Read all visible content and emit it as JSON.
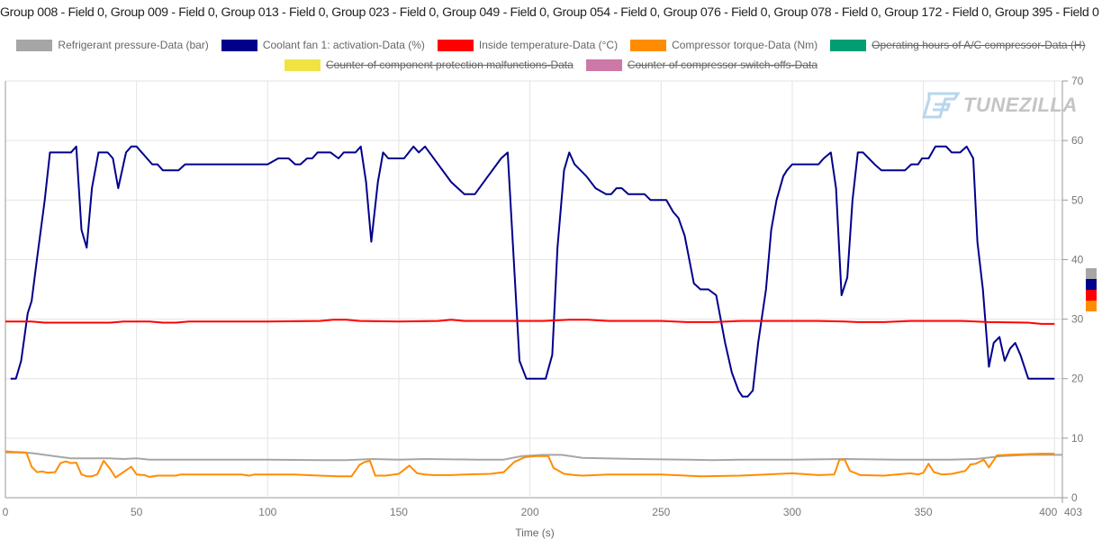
{
  "title": "Group 008 - Field 0, Group 009 - Field 0, Group 013 - Field 0, Group 023 - Field 0, Group 049 - Field 0, Group 054 - Field 0, Group 076 - Field 0, Group 078 - Field 0, Group 172 - Field 0, Group 395 - Field 0",
  "watermark": "TUNEZILLA",
  "chart_data": {
    "type": "line",
    "title": "Group 008 - Field 0, Group 009 - Field 0, Group 013 - Field 0, Group 023 - Field 0, Group 049 - Field 0, Group 054 - Field 0, Group 076 - Field 0, Group 078 - Field 0, Group 172 - Field 0, Group 395 - Field 0",
    "xlabel": "Time (s)",
    "ylabel": "",
    "xlim": [
      0,
      403
    ],
    "ylim": [
      0,
      70
    ],
    "x_ticks": [
      "0",
      "50",
      "100",
      "150",
      "200",
      "250",
      "300",
      "350",
      "400",
      "403"
    ],
    "y_ticks": [
      "0",
      "10",
      "20",
      "30",
      "40",
      "50",
      "60",
      "70"
    ],
    "grid": true,
    "legend_position": "top",
    "series": [
      {
        "name": "Refrigerant pressure-Data (bar)",
        "color": "#a6a6a6",
        "visible": true,
        "points": [
          [
            0,
            7.6
          ],
          [
            5,
            7.6
          ],
          [
            10,
            7.5
          ],
          [
            15,
            7.2
          ],
          [
            20,
            6.9
          ],
          [
            25,
            6.6
          ],
          [
            40,
            6.6
          ],
          [
            45,
            6.5
          ],
          [
            50,
            6.6
          ],
          [
            55,
            6.4
          ],
          [
            100,
            6.4
          ],
          [
            120,
            6.3
          ],
          [
            130,
            6.3
          ],
          [
            140,
            6.5
          ],
          [
            150,
            6.4
          ],
          [
            160,
            6.5
          ],
          [
            180,
            6.4
          ],
          [
            190,
            6.4
          ],
          [
            197,
            7.0
          ],
          [
            205,
            7.2
          ],
          [
            212,
            7.2
          ],
          [
            220,
            6.7
          ],
          [
            240,
            6.5
          ],
          [
            260,
            6.4
          ],
          [
            270,
            6.3
          ],
          [
            280,
            6.4
          ],
          [
            300,
            6.4
          ],
          [
            320,
            6.5
          ],
          [
            340,
            6.4
          ],
          [
            360,
            6.4
          ],
          [
            370,
            6.5
          ],
          [
            380,
            7.0
          ],
          [
            390,
            7.2
          ],
          [
            403,
            7.2
          ]
        ]
      },
      {
        "name": "Coolant fan 1: activation-Data (%)",
        "color": "#00008b",
        "visible": true,
        "points": [
          [
            2,
            20
          ],
          [
            4,
            20
          ],
          [
            6,
            23
          ],
          [
            8.5,
            31
          ],
          [
            10,
            33
          ],
          [
            12,
            40
          ],
          [
            15,
            50
          ],
          [
            17,
            58
          ],
          [
            25,
            58
          ],
          [
            27,
            59
          ],
          [
            29,
            45
          ],
          [
            31,
            42
          ],
          [
            33,
            52
          ],
          [
            35.5,
            58
          ],
          [
            39,
            58
          ],
          [
            41,
            57
          ],
          [
            43,
            52
          ],
          [
            46,
            58
          ],
          [
            48,
            59
          ],
          [
            50,
            59
          ],
          [
            56,
            56
          ],
          [
            58,
            56
          ],
          [
            60,
            55
          ],
          [
            66,
            55
          ],
          [
            68.5,
            56
          ],
          [
            100,
            56
          ],
          [
            104,
            57
          ],
          [
            108,
            57
          ],
          [
            110.5,
            56
          ],
          [
            112.5,
            56
          ],
          [
            115,
            57
          ],
          [
            117,
            57
          ],
          [
            119,
            58
          ],
          [
            124,
            58
          ],
          [
            127,
            57
          ],
          [
            129,
            58
          ],
          [
            133.5,
            58
          ],
          [
            135.5,
            59
          ],
          [
            137.5,
            53
          ],
          [
            139.5,
            43
          ],
          [
            142,
            53
          ],
          [
            144,
            58
          ],
          [
            146,
            57
          ],
          [
            152,
            57
          ],
          [
            155.6,
            59
          ],
          [
            157.6,
            58
          ],
          [
            160,
            59
          ],
          [
            170,
            53
          ],
          [
            175,
            51
          ],
          [
            179,
            51
          ],
          [
            184,
            54
          ],
          [
            189,
            57
          ],
          [
            191.5,
            58
          ],
          [
            196,
            23
          ],
          [
            198.6,
            20
          ],
          [
            206,
            20
          ],
          [
            208.5,
            24
          ],
          [
            210.5,
            42
          ],
          [
            213,
            55
          ],
          [
            215,
            58
          ],
          [
            217,
            56
          ],
          [
            221.5,
            54
          ],
          [
            225,
            52
          ],
          [
            229,
            51
          ],
          [
            231,
            51
          ],
          [
            233,
            52
          ],
          [
            235,
            52
          ],
          [
            237.5,
            51
          ],
          [
            243.7,
            51
          ],
          [
            246,
            50
          ],
          [
            252,
            50
          ],
          [
            254.6,
            48
          ],
          [
            256.6,
            47
          ],
          [
            259,
            44
          ],
          [
            262.5,
            36
          ],
          [
            265,
            35
          ],
          [
            268,
            35
          ],
          [
            271,
            34
          ],
          [
            274.4,
            26
          ],
          [
            277,
            21
          ],
          [
            279.5,
            18
          ],
          [
            281,
            17
          ],
          [
            283,
            17
          ],
          [
            285,
            18
          ],
          [
            287,
            26
          ],
          [
            290,
            35
          ],
          [
            292,
            45
          ],
          [
            294,
            50
          ],
          [
            296.6,
            54
          ],
          [
            298,
            55
          ],
          [
            300,
            56
          ],
          [
            310,
            56
          ],
          [
            312,
            57
          ],
          [
            314.7,
            58
          ],
          [
            316.7,
            52
          ],
          [
            318.8,
            34
          ],
          [
            321,
            37
          ],
          [
            323,
            50
          ],
          [
            325,
            58
          ],
          [
            327,
            58
          ],
          [
            331.4,
            56
          ],
          [
            334,
            55
          ],
          [
            343,
            55
          ],
          [
            345.4,
            56
          ],
          [
            348,
            56
          ],
          [
            349.5,
            57
          ],
          [
            352,
            57
          ],
          [
            354.6,
            59
          ],
          [
            358.7,
            59
          ],
          [
            360.8,
            58
          ],
          [
            364,
            58
          ],
          [
            366.5,
            59
          ],
          [
            369,
            57
          ],
          [
            370.6,
            43
          ],
          [
            372.7,
            35
          ],
          [
            375,
            22
          ],
          [
            376.8,
            26
          ],
          [
            379,
            27
          ],
          [
            381,
            23
          ],
          [
            383,
            25
          ],
          [
            385,
            26
          ],
          [
            387,
            24
          ],
          [
            390,
            20
          ],
          [
            400,
            20
          ]
        ]
      },
      {
        "name": "Inside temperature-Data (°C)",
        "color": "#ff0000",
        "visible": true,
        "points": [
          [
            0,
            29.6
          ],
          [
            10,
            29.6
          ],
          [
            15,
            29.4
          ],
          [
            40,
            29.4
          ],
          [
            45,
            29.6
          ],
          [
            55,
            29.6
          ],
          [
            60,
            29.4
          ],
          [
            65,
            29.4
          ],
          [
            70,
            29.6
          ],
          [
            100,
            29.6
          ],
          [
            120,
            29.7
          ],
          [
            125,
            29.9
          ],
          [
            130,
            29.9
          ],
          [
            135,
            29.7
          ],
          [
            150,
            29.6
          ],
          [
            165,
            29.7
          ],
          [
            170,
            29.9
          ],
          [
            175,
            29.7
          ],
          [
            205,
            29.7
          ],
          [
            215,
            29.9
          ],
          [
            222,
            29.9
          ],
          [
            230,
            29.7
          ],
          [
            250,
            29.7
          ],
          [
            260,
            29.5
          ],
          [
            270,
            29.5
          ],
          [
            280,
            29.7
          ],
          [
            310,
            29.7
          ],
          [
            320,
            29.6
          ],
          [
            325,
            29.5
          ],
          [
            335,
            29.5
          ],
          [
            345,
            29.7
          ],
          [
            365,
            29.7
          ],
          [
            375,
            29.5
          ],
          [
            390,
            29.4
          ],
          [
            395,
            29.2
          ],
          [
            400,
            29.2
          ]
        ]
      },
      {
        "name": "Compressor torque-Data (Nm)",
        "color": "#ff8c00",
        "visible": true,
        "points": [
          [
            0,
            7.8
          ],
          [
            3,
            7.7
          ],
          [
            8,
            7.6
          ],
          [
            10,
            5.2
          ],
          [
            12,
            4.3
          ],
          [
            14,
            4.4
          ],
          [
            16,
            4.2
          ],
          [
            19,
            4.3
          ],
          [
            21,
            5.8
          ],
          [
            23,
            6.1
          ],
          [
            25,
            5.8
          ],
          [
            27,
            5.9
          ],
          [
            29,
            3.9
          ],
          [
            31,
            3.6
          ],
          [
            33,
            3.6
          ],
          [
            35,
            3.9
          ],
          [
            37.5,
            6.2
          ],
          [
            40,
            4.8
          ],
          [
            42,
            3.4
          ],
          [
            46,
            4.6
          ],
          [
            48,
            5.2
          ],
          [
            50,
            3.9
          ],
          [
            53,
            3.8
          ],
          [
            55,
            3.5
          ],
          [
            58,
            3.7
          ],
          [
            65,
            3.7
          ],
          [
            67,
            3.9
          ],
          [
            90,
            3.9
          ],
          [
            93,
            3.7
          ],
          [
            95,
            3.9
          ],
          [
            110,
            3.9
          ],
          [
            120,
            3.7
          ],
          [
            127,
            3.6
          ],
          [
            132,
            3.6
          ],
          [
            135,
            5.5
          ],
          [
            137,
            6.0
          ],
          [
            139,
            6.2
          ],
          [
            141,
            3.7
          ],
          [
            145,
            3.7
          ],
          [
            150,
            4.0
          ],
          [
            154,
            5.4
          ],
          [
            157,
            4.1
          ],
          [
            160,
            3.9
          ],
          [
            163,
            3.8
          ],
          [
            170,
            3.8
          ],
          [
            175,
            3.9
          ],
          [
            185,
            4.0
          ],
          [
            190,
            4.3
          ],
          [
            194,
            6.0
          ],
          [
            198,
            6.8
          ],
          [
            202,
            7.0
          ],
          [
            207,
            7.0
          ],
          [
            209,
            5.0
          ],
          [
            213,
            4.0
          ],
          [
            217,
            3.8
          ],
          [
            220,
            3.7
          ],
          [
            230,
            3.9
          ],
          [
            250,
            3.9
          ],
          [
            265,
            3.6
          ],
          [
            280,
            3.7
          ],
          [
            290,
            3.9
          ],
          [
            300,
            4.1
          ],
          [
            310,
            3.8
          ],
          [
            316,
            3.9
          ],
          [
            318,
            6.4
          ],
          [
            320,
            6.4
          ],
          [
            322,
            4.5
          ],
          [
            326,
            3.8
          ],
          [
            335,
            3.7
          ],
          [
            345,
            4.1
          ],
          [
            348,
            3.9
          ],
          [
            350,
            4.2
          ],
          [
            352,
            5.7
          ],
          [
            354,
            4.3
          ],
          [
            357,
            3.9
          ],
          [
            361,
            4.0
          ],
          [
            366,
            4.5
          ],
          [
            368,
            5.6
          ],
          [
            370,
            5.7
          ],
          [
            373,
            6.4
          ],
          [
            375,
            5.1
          ],
          [
            378,
            7.1
          ],
          [
            382,
            7.2
          ],
          [
            388,
            7.3
          ],
          [
            395,
            7.4
          ],
          [
            400,
            7.4
          ]
        ]
      },
      {
        "name": "Operating hours of A/C compressor-Data (H)",
        "color": "#009e73",
        "visible": false,
        "points": []
      },
      {
        "name": "Counter of component protection malfunctions-Data",
        "color": "#f0e442",
        "visible": false,
        "points": []
      },
      {
        "name": "Counter of compressor switch-offs-Data",
        "color": "#cc79a7",
        "visible": false,
        "points": []
      }
    ]
  }
}
